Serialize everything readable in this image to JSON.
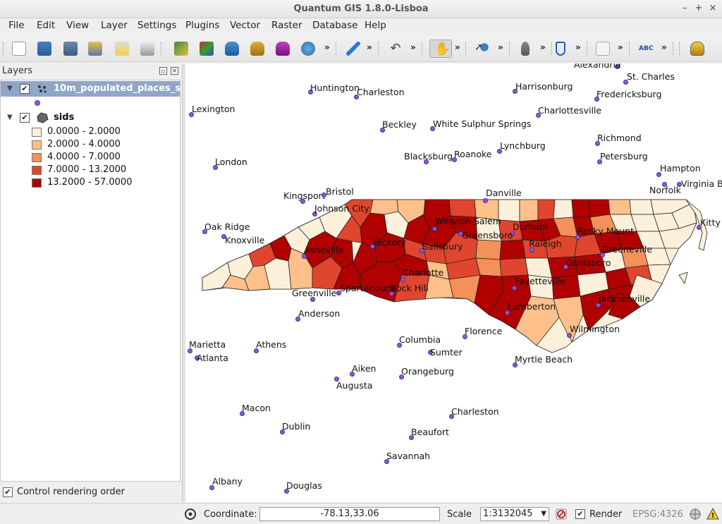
{
  "window": {
    "title": "Quantum GIS 1.8.0-Lisboa",
    "minimize": "–",
    "maximize": "+",
    "close": "×"
  },
  "menu": [
    "File",
    "Edit",
    "View",
    "Layer",
    "Settings",
    "Plugins",
    "Vector",
    "Raster",
    "Database",
    "Help"
  ],
  "toolbar": {
    "icons": [
      "new-project-icon",
      "open-project-icon",
      "save-project-icon",
      "save-as-icon",
      "new-print-composer-icon",
      "print-icon",
      "add-vector-layer-icon",
      "add-raster-layer-icon",
      "add-postgis-layer-icon",
      "add-spatialite-layer-icon",
      "add-wms-layer-icon",
      "add-layer-icon",
      "toggle-editing-icon",
      "undo-icon",
      "pan-icon",
      "identify-icon",
      "map-tips-icon",
      "bookmark-icon",
      "attribute-table-icon",
      "label-icon",
      "database-icon"
    ],
    "overflow": "»"
  },
  "layers_panel": {
    "title": "Layers",
    "layers": [
      {
        "name": "10m_populated_places_s...",
        "checked": "✔",
        "expanded": "▼",
        "selected": true
      },
      {
        "name": "sids",
        "checked": "✔",
        "expanded": "▼",
        "selected": false
      }
    ],
    "legend": [
      {
        "label": "0.0000 - 2.0000",
        "color": "#fdf0db"
      },
      {
        "label": "2.0000 - 4.0000",
        "color": "#fdc08a"
      },
      {
        "label": "4.0000 - 7.0000",
        "color": "#f4905a"
      },
      {
        "label": "7.0000 - 13.2000",
        "color": "#e0462e"
      },
      {
        "label": "13.2000 - 57.0000",
        "color": "#b10000"
      }
    ],
    "control_rendering_order": {
      "label": "Control rendering order",
      "checked": "✔"
    }
  },
  "map": {
    "cities": [
      "Alexandria",
      "St. Charles",
      "Huntington",
      "Charleston",
      "Harrisonburg",
      "Fredericksburg",
      "Lexington",
      "Charlottesville",
      "Beckley",
      "White Sulphur Springs",
      "Richmond",
      "Lynchburg",
      "Blacksburg",
      "Roanoke",
      "Petersburg",
      "London",
      "Hampton",
      "Norfolk",
      "Virginia B",
      "Kingsport",
      "Bristol",
      "Danville",
      "Johnson City",
      "Kitty H",
      "Oak Ridge",
      "Winston-Salem",
      "Durham",
      "Rocky Mount",
      "Knoxville",
      "Greensboro",
      "Raleigh",
      "Greeneville",
      "Hickory",
      "Asheville",
      "Salisbury",
      "Goldsboro",
      "Charlotte",
      "Fayetteville",
      "Spartanburg",
      "Rock Hill",
      "Greenville",
      "Jacksonville",
      "Lumberton",
      "Anderson",
      "Florence",
      "Wilmington",
      "Columbia",
      "Marietta",
      "Athens",
      "Sumter",
      "Atlanta",
      "Myrtle Beach",
      "Aiken",
      "Orangeburg",
      "Augusta",
      "Macon",
      "Charleston",
      "Dublin",
      "Beaufort",
      "Savannah",
      "Albany",
      "Douglas"
    ]
  },
  "statusbar": {
    "coordinate_label": "Coordinate:",
    "coordinate_value": "-78.13,33.06",
    "scale_label": "Scale",
    "scale_value": "1:3132045",
    "render_label": "Render",
    "render_checked": "✔",
    "crs": "EPSG:4326"
  }
}
